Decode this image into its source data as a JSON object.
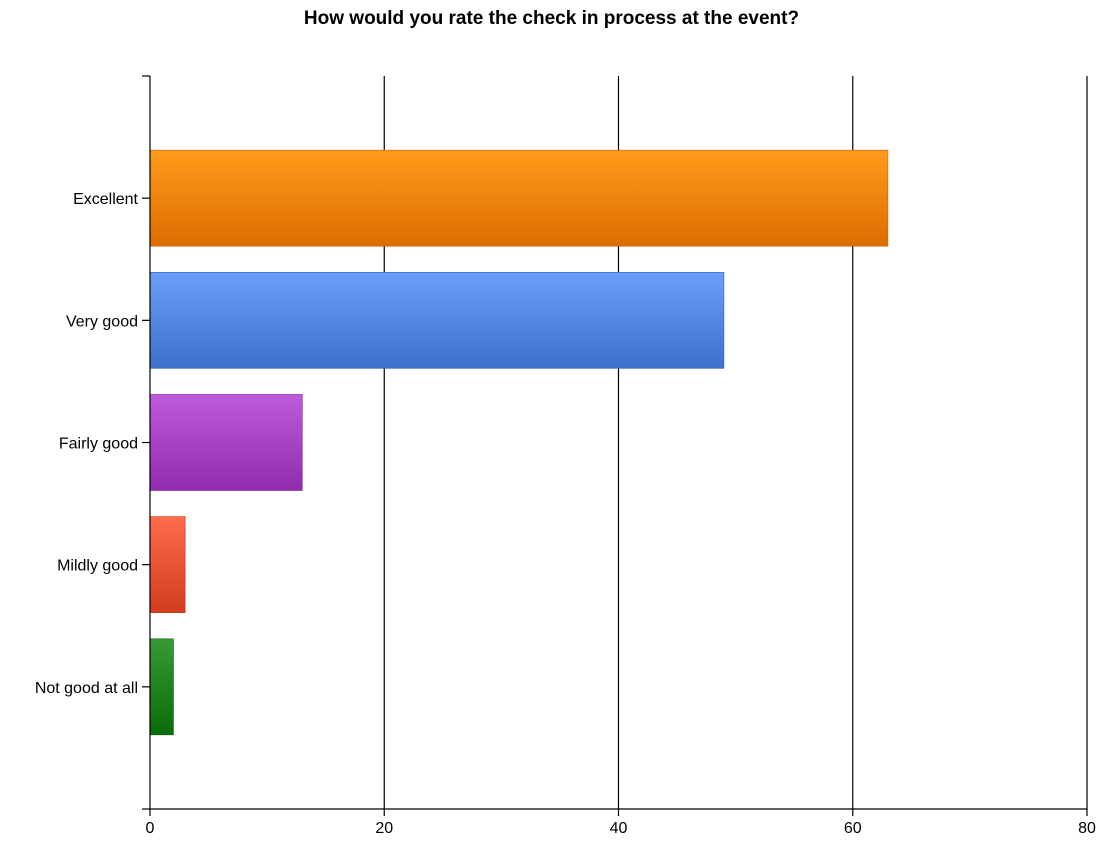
{
  "chart_data": {
    "type": "bar",
    "orientation": "horizontal",
    "title": "How would you rate the check in process at the event?",
    "categories": [
      "Excellent",
      "Very good",
      "Fairly good",
      "Mildly good",
      "Not good at all"
    ],
    "values": [
      63,
      49,
      13,
      3,
      2
    ],
    "colors": [
      "#ee7f00",
      "#4f82dd",
      "#a23ebf",
      "#e4502f",
      "#1b7e1b"
    ],
    "xlim": [
      0,
      80
    ],
    "x_ticks": [
      "0",
      "20",
      "40",
      "60",
      "80"
    ],
    "xlabel": "",
    "ylabel": "",
    "grid": true
  }
}
